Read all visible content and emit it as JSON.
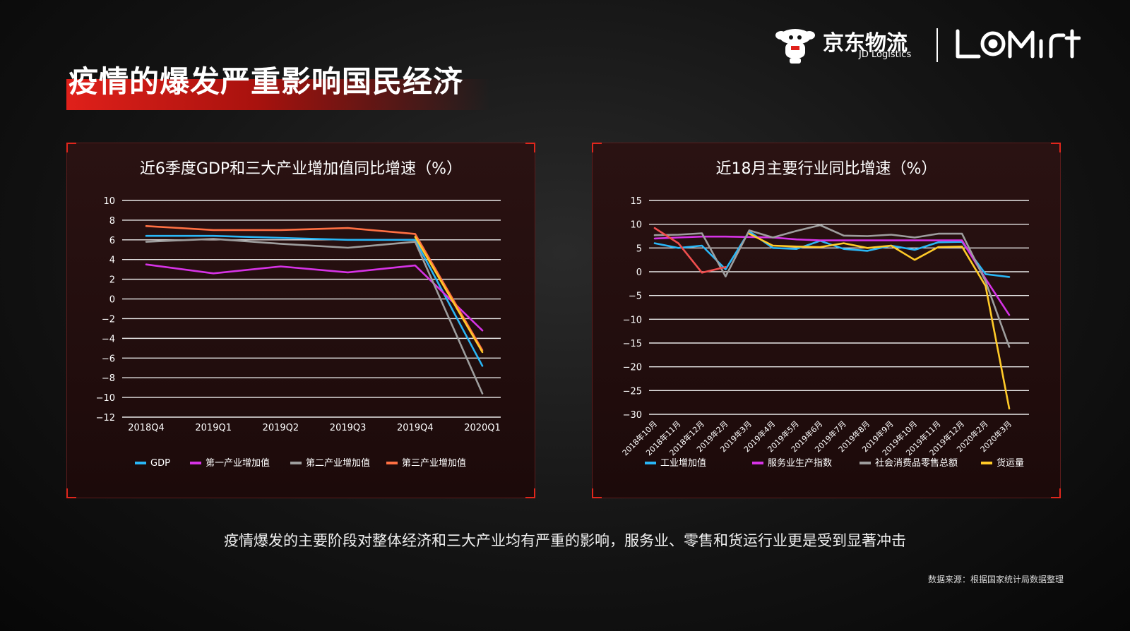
{
  "page": {
    "title": "疫情的爆发严重影响国民经济",
    "caption": "疫情爆发的主要阶段对整体经济和三大产业均有严重的影响，服务业、零售和货运行业更是受到显著冲击",
    "source": "数据来源：根据国家统计局数据整理"
  },
  "brand": {
    "cn": "京东物流",
    "en": "JD Logistics",
    "partner_icon": "lomir-logo",
    "mascot_icon": "jd-dog-icon"
  },
  "colors": {
    "accent": "#e0201a",
    "gdp": "#29b6f6",
    "primary": "#d633e6",
    "secondary": "#9e9e9e",
    "tertiary": "#ff7043",
    "freight": "#ffca28"
  },
  "chart_data": [
    {
      "type": "line",
      "title": "近6季度GDP和三大产业增加值同比增速（%）",
      "categories": [
        "2018Q4",
        "2019Q1",
        "2019Q2",
        "2019Q3",
        "2019Q4",
        "2020Q1"
      ],
      "ylim": [
        -12,
        10
      ],
      "yticks": [
        10,
        8,
        6,
        4,
        2,
        0,
        -2,
        -4,
        -6,
        -8,
        -10,
        -12
      ],
      "grid": true,
      "legend": "bottom",
      "series": [
        {
          "name": "GDP",
          "color": "#29b6f6",
          "values": [
            6.4,
            6.4,
            6.2,
            6.0,
            6.0,
            -6.8
          ]
        },
        {
          "name": "第一产业增加值",
          "color": "#d633e6",
          "values": [
            3.5,
            2.6,
            3.3,
            2.7,
            3.4,
            -3.2
          ]
        },
        {
          "name": "第二产业增加值",
          "color": "#9e9e9e",
          "values": [
            5.8,
            6.1,
            5.6,
            5.2,
            5.8,
            -9.6
          ]
        },
        {
          "name": "第三产业增加值",
          "color": "#ff7043",
          "values": [
            7.4,
            7.0,
            7.0,
            7.2,
            6.6,
            -5.2
          ]
        },
        {
          "name": "",
          "color": "#ffca28",
          "legend": false,
          "values": [
            null,
            null,
            null,
            null,
            6.3,
            -5.4
          ]
        }
      ]
    },
    {
      "type": "line",
      "title": "近18月主要行业同比增速（%）",
      "categories": [
        "2018年10月",
        "2018年11月",
        "2018年12月",
        "2019年2月",
        "2019年3月",
        "2019年4月",
        "2019年5月",
        "2019年6月",
        "2019年7月",
        "2019年8月",
        "2019年9月",
        "2019年10月",
        "2019年11月",
        "2019年12月",
        "2020年2月",
        "2020年3月"
      ],
      "ylim": [
        -30,
        15
      ],
      "yticks": [
        15,
        10,
        5,
        0,
        -5,
        -10,
        -15,
        -20,
        -25,
        -30
      ],
      "grid": true,
      "legend": "bottom",
      "series": [
        {
          "name": "工业增加值",
          "color": "#29b6f6",
          "values": [
            6.0,
            5.0,
            5.5,
            0.5,
            8.5,
            5.0,
            4.8,
            6.5,
            4.8,
            4.4,
            5.5,
            4.6,
            6.2,
            6.3,
            -0.5,
            -1.1
          ]
        },
        {
          "name": "服务业生产指数",
          "color": "#d633e6",
          "values": [
            7.0,
            7.2,
            7.4,
            7.4,
            7.3,
            7.2,
            6.8,
            6.6,
            6.6,
            6.6,
            6.6,
            6.6,
            6.6,
            6.6,
            -1.5,
            -9.1
          ]
        },
        {
          "name": "社会消费品零售总额",
          "color": "#9e9e9e",
          "values": [
            7.7,
            7.8,
            8.1,
            -1.0,
            8.7,
            7.2,
            8.6,
            9.8,
            7.6,
            7.5,
            7.8,
            7.2,
            8.0,
            8.0,
            -2.0,
            -15.8
          ]
        },
        {
          "name": "货运量",
          "color": "#ffca28",
          "values": [
            null,
            null,
            null,
            null,
            8.0,
            5.5,
            5.3,
            5.2,
            6.0,
            5.0,
            5.5,
            2.5,
            5.2,
            5.3,
            -3.0,
            -28.8
          ]
        },
        {
          "name": "",
          "color": "#f04e4e",
          "legend": false,
          "values": [
            9.2,
            6.0,
            -0.2,
            1.0,
            null,
            null,
            null,
            null,
            null,
            null,
            null,
            null,
            null,
            null,
            null,
            null
          ]
        }
      ]
    }
  ]
}
